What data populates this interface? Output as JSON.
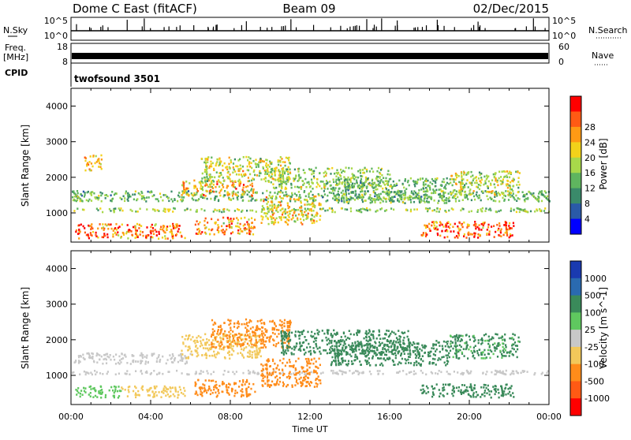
{
  "header": {
    "title": "Dome C East (fitACF)",
    "beam": "Beam 09",
    "date": "02/Dec/2015"
  },
  "panels": {
    "nsky": {
      "label": "N.Sky",
      "right_label": "N.Search",
      "ticks_left": [
        "10^5",
        "10^0"
      ],
      "ticks_right": [
        "10^5",
        "10^0"
      ]
    },
    "freq": {
      "label_line1": "Freq.",
      "label_line2": "[MHz]",
      "right_label": "Nave",
      "ticks_left": [
        "18",
        "8"
      ],
      "ticks_right": [
        "60",
        "0"
      ]
    },
    "cpid": {
      "label": "CPID",
      "program": "twofsound 3501"
    }
  },
  "colors": {
    "power_scale": [
      "#0000ff",
      "#2a5aa8",
      "#3a8a6a",
      "#5fb55f",
      "#a8d84a",
      "#f2d21a",
      "#ff9a14",
      "#ff5a14",
      "#ff0000"
    ],
    "velocity_scale": [
      "#ff0000",
      "#ff5a14",
      "#ff8c1a",
      "#f2c85a",
      "#c8c8c8",
      "#5fc85f",
      "#3a8a5a",
      "#2a6ab0",
      "#1a3ab0"
    ]
  },
  "chart_data": [
    {
      "type": "heatmap",
      "name": "power",
      "ylabel": "Slant Range [km]",
      "ylim": [
        180,
        4500
      ],
      "yticks": [
        "1000",
        "2000",
        "3000",
        "4000"
      ],
      "xlim": [
        0,
        24
      ],
      "colorbar": {
        "label": "Power [dB]",
        "ticks": [
          "4",
          "8",
          "12",
          "16",
          "20",
          "24",
          "28"
        ],
        "range": [
          0,
          30
        ]
      },
      "bands": [
        {
          "t0": 0.2,
          "t1": 5.7,
          "r0": 300,
          "r1": 720,
          "v": 24
        },
        {
          "t0": 6.2,
          "t1": 9.2,
          "r0": 420,
          "r1": 900,
          "v": 22
        },
        {
          "t0": 17.5,
          "t1": 22.2,
          "r0": 330,
          "r1": 780,
          "v": 24
        },
        {
          "t0": 0.0,
          "t1": 24.0,
          "r0": 1050,
          "r1": 1160,
          "v": 14
        },
        {
          "t0": 0.0,
          "t1": 24.0,
          "r0": 1350,
          "r1": 1650,
          "v": 12
        },
        {
          "t0": 5.5,
          "t1": 9.2,
          "r0": 1500,
          "r1": 1950,
          "v": 20
        },
        {
          "t0": 6.5,
          "t1": 11.0,
          "r0": 1900,
          "r1": 2600,
          "v": 16
        },
        {
          "t0": 10.0,
          "t1": 16.0,
          "r0": 1700,
          "r1": 2300,
          "v": 14
        },
        {
          "t0": 13.0,
          "t1": 19.0,
          "r0": 1300,
          "r1": 2000,
          "v": 12
        },
        {
          "t0": 19.0,
          "t1": 22.5,
          "r0": 1500,
          "r1": 2200,
          "v": 16
        },
        {
          "t0": 0.6,
          "t1": 1.5,
          "r0": 2200,
          "r1": 2650,
          "v": 20
        },
        {
          "t0": 9.5,
          "t1": 12.5,
          "r0": 700,
          "r1": 1500,
          "v": 18
        }
      ]
    },
    {
      "type": "heatmap",
      "name": "velocity",
      "ylabel": "Slant Range [km]",
      "xlabel": "Time UT",
      "ylim": [
        180,
        4500
      ],
      "yticks": [
        "1000",
        "2000",
        "3000",
        "4000"
      ],
      "xlim": [
        0,
        24
      ],
      "xticks": [
        "00:00",
        "04:00",
        "08:00",
        "12:00",
        "16:00",
        "20:00",
        "00:00"
      ],
      "colorbar": {
        "label": "Velocity [m s^-1]",
        "ticks": [
          "1000",
          "500",
          "100",
          "25",
          "-25",
          "-100",
          "-500",
          "-1000"
        ]
      },
      "bands": [
        {
          "t0": 0.2,
          "t1": 2.5,
          "r0": 400,
          "r1": 720,
          "v": 60
        },
        {
          "t0": 2.5,
          "t1": 5.7,
          "r0": 400,
          "r1": 720,
          "v": -40
        },
        {
          "t0": 6.2,
          "t1": 9.2,
          "r0": 420,
          "r1": 900,
          "v": -150
        },
        {
          "t0": 17.5,
          "t1": 22.2,
          "r0": 400,
          "r1": 780,
          "v": 150
        },
        {
          "t0": 0.0,
          "t1": 24.0,
          "r0": 1050,
          "r1": 1160,
          "v": 0
        },
        {
          "t0": 0.0,
          "t1": 6.0,
          "r0": 1350,
          "r1": 1650,
          "v": 0
        },
        {
          "t0": 5.5,
          "t1": 9.5,
          "r0": 1500,
          "r1": 2200,
          "v": -60
        },
        {
          "t0": 7.0,
          "t1": 11.0,
          "r0": 1800,
          "r1": 2600,
          "v": -150
        },
        {
          "t0": 10.5,
          "t1": 17.0,
          "r0": 1600,
          "r1": 2300,
          "v": 150
        },
        {
          "t0": 13.0,
          "t1": 19.0,
          "r0": 1300,
          "r1": 2000,
          "v": 300
        },
        {
          "t0": 19.0,
          "t1": 22.5,
          "r0": 1500,
          "r1": 2200,
          "v": 120
        },
        {
          "t0": 9.5,
          "t1": 12.5,
          "r0": 700,
          "r1": 1500,
          "v": -300
        }
      ]
    }
  ]
}
